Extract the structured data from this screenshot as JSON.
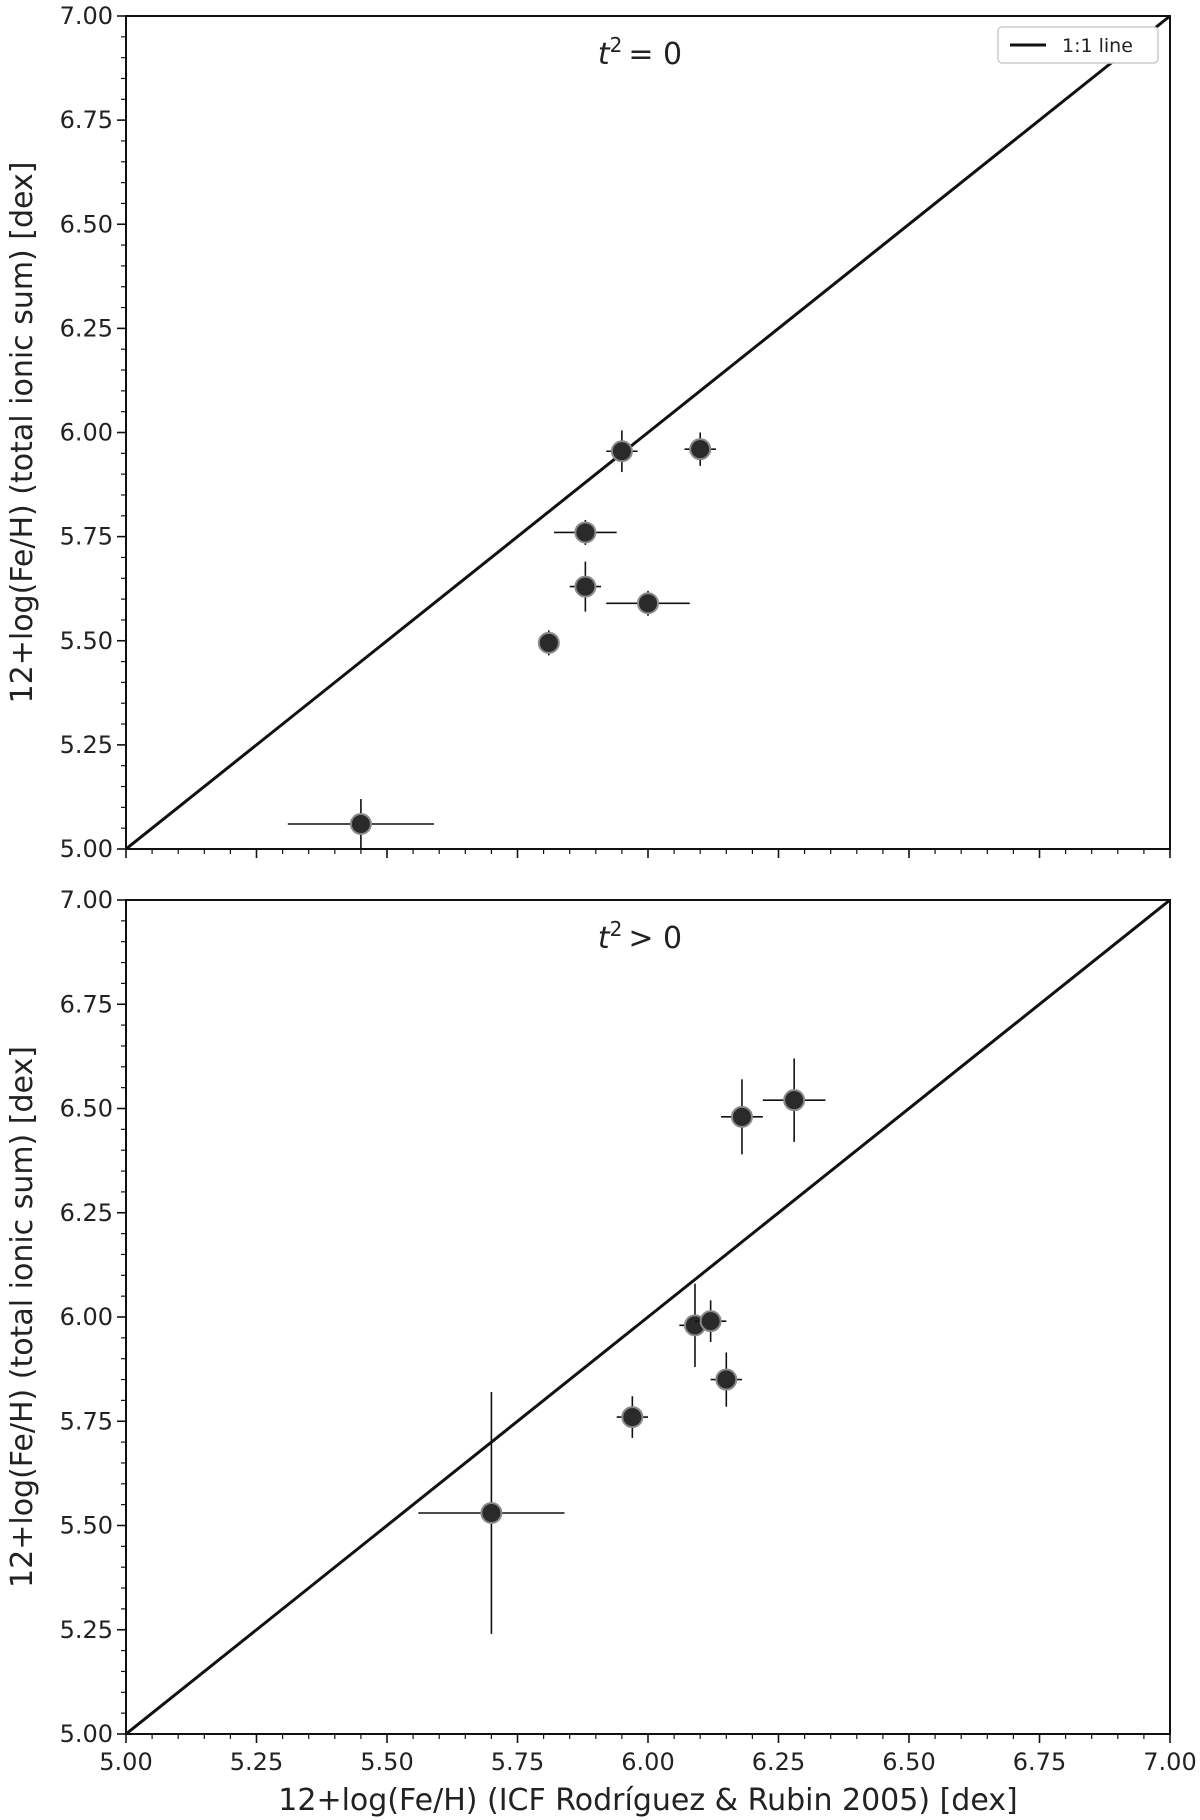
{
  "chart_data": [
    {
      "type": "scatter",
      "annotation": {
        "symbol": "t",
        "sup": "2",
        "rel": "= 0"
      },
      "xlabel": "",
      "ylabel": "12+log(Fe/H) (total ionic sum) [dex]",
      "xlim": [
        5.0,
        7.0
      ],
      "ylim": [
        5.0,
        7.0
      ],
      "xticks": [
        "5.00",
        "5.25",
        "5.50",
        "5.75",
        "6.00",
        "6.25",
        "6.50",
        "6.75",
        "7.00"
      ],
      "yticks": [
        "5.00",
        "5.25",
        "5.50",
        "5.75",
        "6.00",
        "6.25",
        "6.50",
        "6.75",
        "7.00"
      ],
      "legend": {
        "position": "top-right",
        "entries": [
          "1:1 line"
        ]
      },
      "grid": false,
      "reference_line": {
        "label": "1:1 line",
        "x": [
          5.0,
          7.0
        ],
        "y": [
          5.0,
          7.0
        ]
      },
      "points": [
        {
          "x": 5.45,
          "y": 5.06,
          "xerr": 0.14,
          "yerr": 0.06
        },
        {
          "x": 5.81,
          "y": 5.495,
          "xerr": 0.02,
          "yerr": 0.03
        },
        {
          "x": 5.88,
          "y": 5.63,
          "xerr": 0.03,
          "yerr": 0.06
        },
        {
          "x": 5.88,
          "y": 5.76,
          "xerr": 0.06,
          "yerr": 0.03
        },
        {
          "x": 5.95,
          "y": 5.955,
          "xerr": 0.03,
          "yerr": 0.05
        },
        {
          "x": 6.0,
          "y": 5.59,
          "xerr": 0.08,
          "yerr": 0.03
        },
        {
          "x": 6.1,
          "y": 5.96,
          "xerr": 0.03,
          "yerr": 0.04
        }
      ]
    },
    {
      "type": "scatter",
      "annotation": {
        "symbol": "t",
        "sup": "2",
        "rel": "> 0"
      },
      "xlabel": "12+log(Fe/H) (ICF Rodríguez & Rubin 2005) [dex]",
      "ylabel": "12+log(Fe/H) (total ionic sum) [dex]",
      "xlim": [
        5.0,
        7.0
      ],
      "ylim": [
        5.0,
        7.0
      ],
      "xticks": [
        "5.00",
        "5.25",
        "5.50",
        "5.75",
        "6.00",
        "6.25",
        "6.50",
        "6.75",
        "7.00"
      ],
      "yticks": [
        "5.00",
        "5.25",
        "5.50",
        "5.75",
        "6.00",
        "6.25",
        "6.50",
        "6.75",
        "7.00"
      ],
      "grid": false,
      "reference_line": {
        "x": [
          5.0,
          7.0
        ],
        "y": [
          5.0,
          7.0
        ]
      },
      "points": [
        {
          "x": 5.7,
          "y": 5.53,
          "xerr": 0.14,
          "yerr": 0.29
        },
        {
          "x": 5.97,
          "y": 5.76,
          "xerr": 0.03,
          "yerr": 0.05
        },
        {
          "x": 6.09,
          "y": 5.98,
          "xerr": 0.03,
          "yerr": 0.1
        },
        {
          "x": 6.12,
          "y": 5.99,
          "xerr": 0.03,
          "yerr": 0.05
        },
        {
          "x": 6.15,
          "y": 5.85,
          "xerr": 0.03,
          "yerr": 0.065
        },
        {
          "x": 6.18,
          "y": 6.48,
          "xerr": 0.04,
          "yerr": 0.09
        },
        {
          "x": 6.28,
          "y": 6.52,
          "xerr": 0.06,
          "yerr": 0.1
        }
      ]
    }
  ]
}
